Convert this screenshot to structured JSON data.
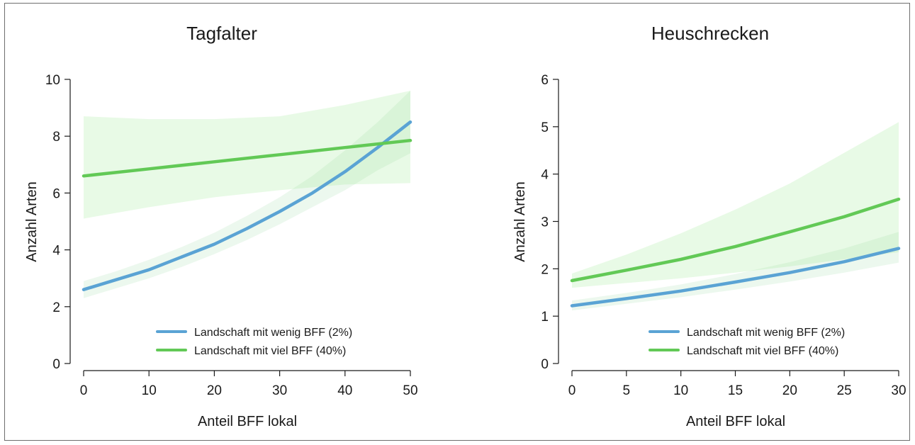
{
  "chart_data": [
    {
      "type": "line",
      "title": "Tagfalter",
      "xlabel": "Anteil BFF lokal",
      "ylabel": "Anzahl Arten",
      "xlim": [
        0,
        50
      ],
      "ylim": [
        0,
        10
      ],
      "xticks": [
        "0",
        "10",
        "20",
        "30",
        "40",
        "50"
      ],
      "yticks": [
        "0",
        "2",
        "4",
        "6",
        "8",
        "10"
      ],
      "legend_position": "bottom-right",
      "series": [
        {
          "name": "Landschaft mit wenig BFF (2%)",
          "color": "#5aa3d4",
          "x": [
            0,
            5,
            10,
            15,
            20,
            25,
            30,
            35,
            40,
            45,
            50
          ],
          "y": [
            2.6,
            2.95,
            3.3,
            3.75,
            4.2,
            4.75,
            5.35,
            6.0,
            6.75,
            7.6,
            8.5
          ],
          "band_lower": [
            2.3,
            2.65,
            3.0,
            3.4,
            3.85,
            4.35,
            4.9,
            5.5,
            6.1,
            6.8,
            7.4
          ],
          "band_upper": [
            2.9,
            3.25,
            3.65,
            4.1,
            4.6,
            5.2,
            5.85,
            6.6,
            7.5,
            8.5,
            9.6
          ]
        },
        {
          "name": "Landschaft mit viel BFF (40%)",
          "color": "#62c956",
          "x": [
            0,
            10,
            20,
            30,
            40,
            50
          ],
          "y": [
            6.6,
            6.85,
            7.1,
            7.35,
            7.6,
            7.85
          ],
          "band_lower": [
            5.1,
            5.5,
            5.85,
            6.1,
            6.3,
            6.35
          ],
          "band_upper": [
            8.7,
            8.6,
            8.6,
            8.7,
            9.1,
            9.6
          ]
        }
      ]
    },
    {
      "type": "line",
      "title": "Heuschrecken",
      "xlabel": "Anteil BFF lokal",
      "ylabel": "Anzahl Arten",
      "xlim": [
        0,
        30
      ],
      "ylim": [
        0,
        6
      ],
      "xticks": [
        "0",
        "5",
        "10",
        "15",
        "20",
        "25",
        "30"
      ],
      "yticks": [
        "0",
        "1",
        "2",
        "3",
        "4",
        "5",
        "6"
      ],
      "legend_position": "bottom-right",
      "series": [
        {
          "name": "Landschaft mit wenig BFF (2%)",
          "color": "#5aa3d4",
          "x": [
            0,
            5,
            10,
            15,
            20,
            25,
            30
          ],
          "y": [
            1.22,
            1.37,
            1.53,
            1.72,
            1.92,
            2.15,
            2.43
          ],
          "band_lower": [
            1.12,
            1.26,
            1.4,
            1.56,
            1.73,
            1.92,
            2.13
          ],
          "band_upper": [
            1.33,
            1.49,
            1.67,
            1.89,
            2.14,
            2.43,
            2.78
          ]
        },
        {
          "name": "Landschaft mit viel BFF (40%)",
          "color": "#62c956",
          "x": [
            0,
            5,
            10,
            15,
            20,
            25,
            30
          ],
          "y": [
            1.75,
            1.97,
            2.2,
            2.47,
            2.78,
            3.1,
            3.47
          ],
          "band_lower": [
            1.6,
            1.7,
            1.8,
            1.92,
            2.05,
            2.2,
            2.35
          ],
          "band_upper": [
            1.9,
            2.3,
            2.75,
            3.25,
            3.8,
            4.45,
            5.1
          ]
        }
      ]
    }
  ]
}
